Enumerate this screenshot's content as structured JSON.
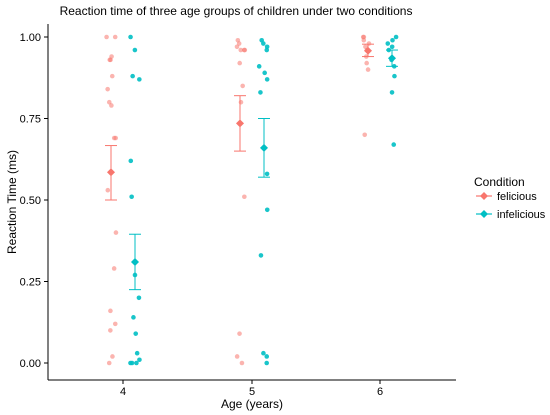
{
  "chart_data": {
    "type": "scatter",
    "title": "Reaction time of three age groups of children under two conditions",
    "xlabel": "Age (years)",
    "ylabel": "Reaction Time (ms)",
    "ylim": [
      0,
      1
    ],
    "x_categories": [
      "4",
      "5",
      "6"
    ],
    "y_ticks": [
      "0.00",
      "0.25",
      "0.50",
      "0.75",
      "1.00"
    ],
    "legend": {
      "title": "Condition",
      "position": "right"
    },
    "grid": false,
    "series": [
      {
        "name": "felicious",
        "color": "#F8766D",
        "groups": [
          {
            "age": "4",
            "points": [
              1.0,
              1.0,
              0.94,
              0.93,
              0.93,
              0.88,
              0.84,
              0.8,
              0.79,
              0.69,
              0.69,
              0.53,
              0.4,
              0.29,
              0.16,
              0.12,
              0.1,
              0.02,
              0.0
            ],
            "mean": 0.585,
            "ci_low": 0.5,
            "ci_high": 0.667
          },
          {
            "age": "5",
            "points": [
              0.99,
              0.98,
              0.97,
              0.96,
              0.96,
              0.96,
              0.92,
              0.85,
              0.8,
              0.51,
              0.09,
              0.02,
              0.0
            ],
            "mean": 0.735,
            "ci_low": 0.65,
            "ci_high": 0.82
          },
          {
            "age": "6",
            "points": [
              1.0,
              1.0,
              0.99,
              0.98,
              0.97,
              0.96,
              0.94,
              0.92,
              0.9,
              0.7
            ],
            "mean": 0.958,
            "ci_low": 0.94,
            "ci_high": 0.978
          }
        ]
      },
      {
        "name": "infelicious",
        "color": "#00BFC4",
        "groups": [
          {
            "age": "4",
            "points": [
              1.0,
              0.96,
              0.88,
              0.87,
              0.62,
              0.51,
              0.27,
              0.2,
              0.14,
              0.09,
              0.03,
              0.01,
              0.0,
              0.0,
              0.0
            ],
            "mean": 0.31,
            "ci_low": 0.225,
            "ci_high": 0.395
          },
          {
            "age": "5",
            "points": [
              0.99,
              0.98,
              0.97,
              0.96,
              0.91,
              0.89,
              0.87,
              0.83,
              0.58,
              0.47,
              0.33,
              0.03,
              0.02,
              0.0
            ],
            "mean": 0.66,
            "ci_low": 0.57,
            "ci_high": 0.75
          },
          {
            "age": "6",
            "points": [
              1.0,
              0.99,
              0.98,
              0.97,
              0.96,
              0.93,
              0.91,
              0.88,
              0.83,
              0.67
            ],
            "mean": 0.935,
            "ci_low": 0.91,
            "ci_high": 0.96
          }
        ]
      }
    ]
  }
}
